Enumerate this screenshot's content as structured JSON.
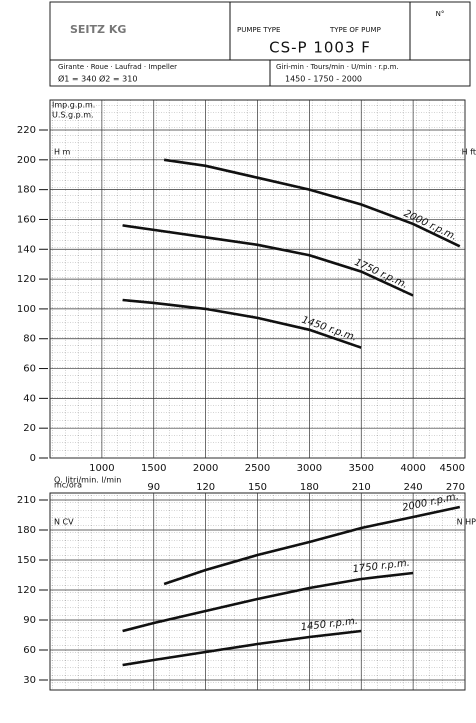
{
  "header": {
    "company": "SEITZ KG",
    "pump_type_label": "PUMPE TYPE",
    "type_of_pump_label": "TYPE OF PUMP",
    "number_label": "N°",
    "model": "CS-P 1003 F",
    "impeller_label": "Girante · Roue · Laufrad · Impeller",
    "impeller_diameters": "Ø1 = 340   Ø2 = 310",
    "speed_label": "Giri-min · Tours/min · U/min · r.p.m.",
    "speeds": "1450 - 1750 - 2000"
  },
  "chart_data": [
    {
      "type": "line",
      "ylabel": "H m",
      "y2label": "H ft",
      "top_labels": [
        "Imp.g.p.m.",
        "U.S.g.p.m."
      ],
      "xlabel": "Q. litri/min. l/min",
      "xlim": [
        500,
        4500
      ],
      "xticks": [
        1000,
        1500,
        2000,
        2500,
        3000,
        3500,
        4000,
        4500
      ],
      "ylim": [
        0,
        220
      ],
      "yticks": [
        0,
        20,
        40,
        60,
        80,
        100,
        120,
        140,
        160,
        180,
        200,
        220
      ],
      "grid": true,
      "series": [
        {
          "name": "2000 r.p.m.",
          "color": "#111111",
          "x": [
            1600,
            2000,
            2500,
            3000,
            3500,
            4000,
            4450
          ],
          "values": [
            200,
            196,
            188,
            180,
            170,
            157,
            142
          ]
        },
        {
          "name": "1750 r.p.m.",
          "color": "#111111",
          "x": [
            1200,
            1500,
            2000,
            2500,
            3000,
            3500,
            4000
          ],
          "values": [
            156,
            153,
            148,
            143,
            136,
            125,
            109
          ]
        },
        {
          "name": "1450 r.p.m.",
          "color": "#111111",
          "x": [
            1200,
            1500,
            2000,
            2500,
            3000,
            3500
          ],
          "values": [
            106,
            104,
            100,
            94,
            86,
            74
          ]
        }
      ]
    },
    {
      "type": "line",
      "ylabel": "N CV",
      "y2label": "N HP",
      "x2label": "mc/ora",
      "xlim": [
        500,
        4500
      ],
      "x2lim": [
        30,
        270
      ],
      "x2ticks": [
        90,
        120,
        150,
        180,
        210,
        240,
        270
      ],
      "ylim": [
        30,
        210
      ],
      "yticks": [
        30,
        60,
        90,
        120,
        150,
        180,
        210
      ],
      "grid": true,
      "series": [
        {
          "name": "2000 r.p.m.",
          "color": "#111111",
          "x": [
            1600,
            2000,
            2500,
            3000,
            3500,
            4000,
            4450
          ],
          "values": [
            126,
            140,
            155,
            168,
            182,
            193,
            203
          ]
        },
        {
          "name": "1750 r.p.m.",
          "color": "#111111",
          "x": [
            1200,
            1500,
            2000,
            2500,
            3000,
            3500,
            4000
          ],
          "values": [
            79,
            87,
            99,
            111,
            122,
            131,
            137
          ]
        },
        {
          "name": "1450 r.p.m.",
          "color": "#111111",
          "x": [
            1200,
            1500,
            2000,
            2500,
            3000,
            3500
          ],
          "values": [
            45,
            50,
            58,
            66,
            73,
            79
          ]
        }
      ]
    }
  ]
}
